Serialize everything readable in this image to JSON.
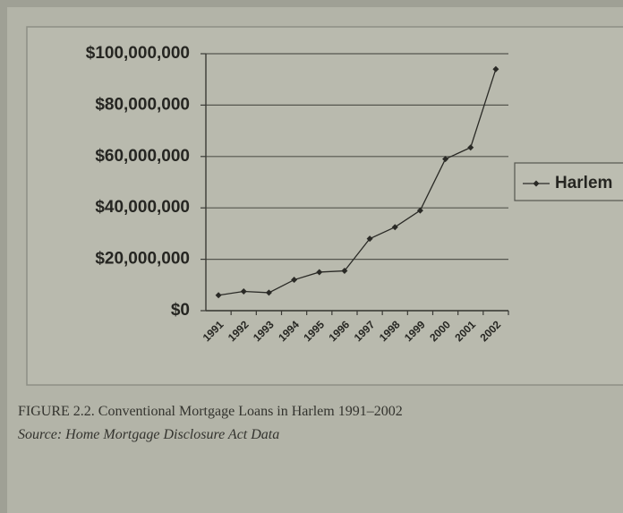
{
  "chart_data": {
    "type": "line",
    "caption": "FIGURE 2.2. Conventional Mortgage Loans in Harlem 1991–2002",
    "source": "Source: Home Mortgage Disclosure Act Data",
    "categories": [
      "1991",
      "1992",
      "1993",
      "1994",
      "1995",
      "1996",
      "1997",
      "1998",
      "1999",
      "2000",
      "2001",
      "2002"
    ],
    "series": [
      {
        "name": "Harlem",
        "color": "#2a2a26",
        "values": [
          6000000,
          7500000,
          7000000,
          12000000,
          15000000,
          15500000,
          28000000,
          32500000,
          39000000,
          59000000,
          63500000,
          94000000
        ]
      }
    ],
    "ylim": [
      0,
      100000000
    ],
    "yticks": [
      {
        "value": 0,
        "label": "$0"
      },
      {
        "value": 20000000,
        "label": "$20,000,000"
      },
      {
        "value": 40000000,
        "label": "$40,000,000"
      },
      {
        "value": 60000000,
        "label": "$60,000,000"
      },
      {
        "value": 80000000,
        "label": "$80,000,000"
      },
      {
        "value": 100000000,
        "label": "$100,000,000"
      }
    ],
    "grid": true,
    "legend": "right"
  }
}
